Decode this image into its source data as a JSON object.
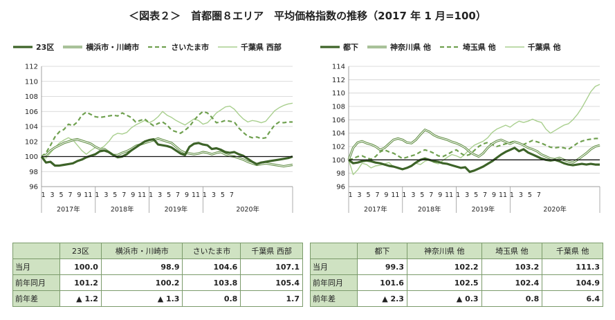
{
  "title": "＜図表２＞　首都圏８エリア　平均価格指数の推移（2017 年 1 月=100）",
  "colors": {
    "dark": "#3d6328",
    "mid": "#5e8c40",
    "dashed": "#6fa04f",
    "light": "#a9cf8e"
  },
  "chart_data": [
    {
      "type": "line",
      "ylim": [
        96,
        112
      ],
      "yticks": [
        96,
        98,
        100,
        102,
        104,
        106,
        108,
        110,
        112
      ],
      "xtick_labels": [
        "1",
        "3",
        "5",
        "7",
        "9",
        "11",
        "1",
        "3",
        "5",
        "7",
        "9",
        "11",
        "1",
        "3",
        "5",
        "7",
        "9",
        "11",
        "1",
        "3",
        "5",
        "7"
      ],
      "years": [
        "2017年",
        "2018年",
        "2019年",
        "2020年"
      ],
      "baseline": 100,
      "series": [
        {
          "name": "23区",
          "style": "dark",
          "values": [
            100,
            99.2,
            99.3,
            98.8,
            98.8,
            98.9,
            99,
            99.1,
            99.4,
            99.6,
            99.9,
            100.1,
            100.3,
            100.7,
            100.8,
            100.6,
            100.2,
            99.9,
            100,
            100.3,
            100.8,
            101.2,
            101.6,
            102,
            102.2,
            102.3,
            101.6,
            101.5,
            101.4,
            101.2,
            100.8,
            100.4,
            100.2,
            101.3,
            101.7,
            101.8,
            101.6,
            101.5,
            101,
            101.1,
            100.9,
            100.6,
            100.5,
            100.6,
            100.3,
            100.1,
            99.7,
            99.3,
            99,
            99.2,
            99.3,
            99.4,
            99.5,
            99.6,
            99.7,
            99.8,
            100
          ]
        },
        {
          "name": "横浜市・川崎市",
          "style": "mid",
          "values": [
            100,
            100.2,
            100.8,
            101.2,
            101.5,
            101.8,
            102,
            102.2,
            102.3,
            102.1,
            101.9,
            101.7,
            101.3,
            101,
            101,
            100.6,
            100.2,
            100.2,
            100.5,
            100.7,
            101,
            101.4,
            101.6,
            101.8,
            102,
            102.2,
            102.4,
            102.2,
            102,
            101.8,
            101.3,
            100.8,
            100.5,
            100.4,
            100.3,
            100.4,
            100.6,
            100.5,
            100.3,
            100.5,
            100.6,
            100.3,
            100.1,
            100,
            99.8,
            99.6,
            99.3,
            99.1,
            98.9,
            99,
            99.1,
            99,
            98.9,
            98.8,
            98.7,
            98.8,
            98.9
          ]
        },
        {
          "name": "さいたま市",
          "style": "dashed",
          "values": [
            100,
            100.5,
            101.5,
            102.6,
            103.3,
            103.6,
            104.3,
            104.1,
            104.6,
            105.5,
            105.9,
            105.6,
            105.3,
            105.2,
            105.3,
            105.4,
            105.5,
            105.4,
            105.8,
            105.5,
            105.2,
            104.6,
            104.8,
            105,
            104.5,
            104.1,
            104.4,
            104.6,
            104.2,
            103.5,
            103.3,
            103.1,
            103.5,
            104,
            104.8,
            105.5,
            106,
            105.8,
            105.2,
            104.5,
            104.6,
            104.8,
            104.7,
            104.6,
            103.8,
            103.2,
            102.7,
            102.5,
            102.6,
            102.4,
            102.5,
            103.4,
            104.2,
            104.6,
            104.5,
            104.6,
            104.6
          ]
        },
        {
          "name": "千葉県 西部",
          "style": "light",
          "values": [
            100,
            99.8,
            100.5,
            101.2,
            101.8,
            102.2,
            102.5,
            102.2,
            101.5,
            100.8,
            100.3,
            100.8,
            101.2,
            101,
            101.4,
            102,
            102.8,
            103.1,
            103,
            103.2,
            103.8,
            104.2,
            104.5,
            104.8,
            104.5,
            104.8,
            105.3,
            106,
            105.5,
            105.2,
            104.8,
            104.5,
            104.2,
            104.6,
            105,
            104.8,
            104.3,
            104.5,
            105.1,
            105.8,
            106.2,
            106.6,
            106.7,
            106.3,
            105.6,
            105,
            104.6,
            104.8,
            104.7,
            104.5,
            104.7,
            105.4,
            106.1,
            106.5,
            106.8,
            107,
            107.1
          ]
        }
      ]
    },
    {
      "type": "line",
      "ylim": [
        96,
        114
      ],
      "yticks": [
        96,
        98,
        100,
        102,
        104,
        106,
        108,
        110,
        112,
        114
      ],
      "xtick_labels": [
        "1",
        "3",
        "5",
        "7",
        "9",
        "11",
        "1",
        "3",
        "5",
        "7",
        "9",
        "11",
        "1",
        "3",
        "5",
        "7",
        "9",
        "11",
        "1",
        "3",
        "5",
        "7"
      ],
      "years": [
        "2017年",
        "2018年",
        "2019年",
        "2020年"
      ],
      "baseline": 100,
      "series": [
        {
          "name": "都下",
          "style": "dark",
          "values": [
            100,
            99.5,
            99.6,
            99.8,
            99.9,
            99.8,
            99.6,
            99.5,
            99.3,
            99.1,
            99,
            98.8,
            98.6,
            98.8,
            99.1,
            99.6,
            100,
            100.2,
            100,
            99.8,
            99.7,
            99.5,
            99.4,
            99.2,
            99,
            98.8,
            98.9,
            98.2,
            98.4,
            98.7,
            99,
            99.4,
            99.8,
            100.3,
            100.8,
            101.2,
            101.5,
            101.8,
            101.3,
            101.6,
            101.1,
            100.8,
            100.5,
            100.2,
            100,
            99.9,
            100,
            99.8,
            99.5,
            99.3,
            99.2,
            99.3,
            99.4,
            99.3,
            99.4,
            99.3,
            99.3
          ]
        },
        {
          "name": "神奈川県 他",
          "style": "mid",
          "values": [
            100,
            101.8,
            102.6,
            102.8,
            102.5,
            102.3,
            102,
            101.5,
            101.8,
            102.4,
            103,
            103.2,
            103,
            102.6,
            102.5,
            103,
            103.8,
            104.5,
            104.2,
            103.7,
            103.4,
            103.2,
            103,
            102.7,
            102.5,
            102.2,
            101.8,
            101.2,
            100.8,
            100.5,
            101,
            101.8,
            102.4,
            102.8,
            103,
            102.7,
            102.4,
            102.7,
            102.5,
            102.2,
            101.8,
            101.6,
            101.3,
            100.8,
            100.5,
            100.2,
            100.1,
            100.3,
            100,
            99.8,
            99.6,
            100,
            100.5,
            101,
            101.6,
            102,
            102.2
          ]
        },
        {
          "name": "埼玉県 他",
          "style": "dashed",
          "values": [
            100,
            100.2,
            100.5,
            100.6,
            100.3,
            100.1,
            100.5,
            101.2,
            101.5,
            101.2,
            101,
            100.6,
            100.2,
            100.4,
            100.6,
            100.8,
            101.2,
            101.5,
            101.3,
            101,
            100.6,
            100.5,
            100.8,
            101.2,
            101.5,
            101,
            100.6,
            100.8,
            101.4,
            102,
            102.4,
            102.6,
            102.3,
            102,
            102.2,
            102.4,
            102.6,
            102.8,
            102.5,
            102.3,
            102.6,
            102.9,
            102.7,
            102.5,
            102.2,
            101.9,
            101.8,
            101.9,
            101.8,
            101.6,
            102,
            102.5,
            102.8,
            103,
            103.1,
            103.2,
            103.2
          ]
        },
        {
          "name": "千葉県 他",
          "style": "light",
          "values": [
            100,
            97.8,
            98.5,
            99.5,
            99.3,
            98.8,
            99.1,
            99.2,
            99.4,
            99.6,
            99,
            98.7,
            98.5,
            98.9,
            99.2,
            99.5,
            99.3,
            99.8,
            100,
            99.6,
            99.4,
            99.9,
            100.4,
            100.8,
            100.6,
            100.3,
            100.9,
            101.6,
            102.2,
            102.5,
            102.8,
            103.3,
            104.1,
            104.6,
            104.9,
            105.2,
            104.9,
            105.4,
            105.8,
            105.6,
            105.8,
            106.1,
            105.8,
            105.6,
            104.6,
            104,
            104.4,
            104.8,
            105.2,
            105.4,
            106,
            106.8,
            107.8,
            109,
            110.2,
            111,
            111.3
          ]
        }
      ]
    }
  ],
  "table_left": {
    "headers": [
      "",
      "23区",
      "横浜市・川崎市",
      "さいたま市",
      "千葉県 西部"
    ],
    "rows": [
      {
        "label": "当月",
        "values": [
          "100.0",
          "98.9",
          "104.6",
          "107.1"
        ]
      },
      {
        "label": "前年同月",
        "values": [
          "101.2",
          "100.2",
          "103.8",
          "105.4"
        ]
      },
      {
        "label": "前年差",
        "values": [
          "▲ 1.2",
          "▲ 1.3",
          "0.8",
          "1.7"
        ]
      }
    ]
  },
  "table_right": {
    "headers": [
      "",
      "都下",
      "神奈川県 他",
      "埼玉県 他",
      "千葉県 他"
    ],
    "rows": [
      {
        "label": "当月",
        "values": [
          "99.3",
          "102.2",
          "103.2",
          "111.3"
        ]
      },
      {
        "label": "前年同月",
        "values": [
          "101.6",
          "102.5",
          "102.4",
          "104.9"
        ]
      },
      {
        "label": "前年差",
        "values": [
          "▲ 2.3",
          "▲ 0.3",
          "0.8",
          "6.4"
        ]
      }
    ]
  }
}
